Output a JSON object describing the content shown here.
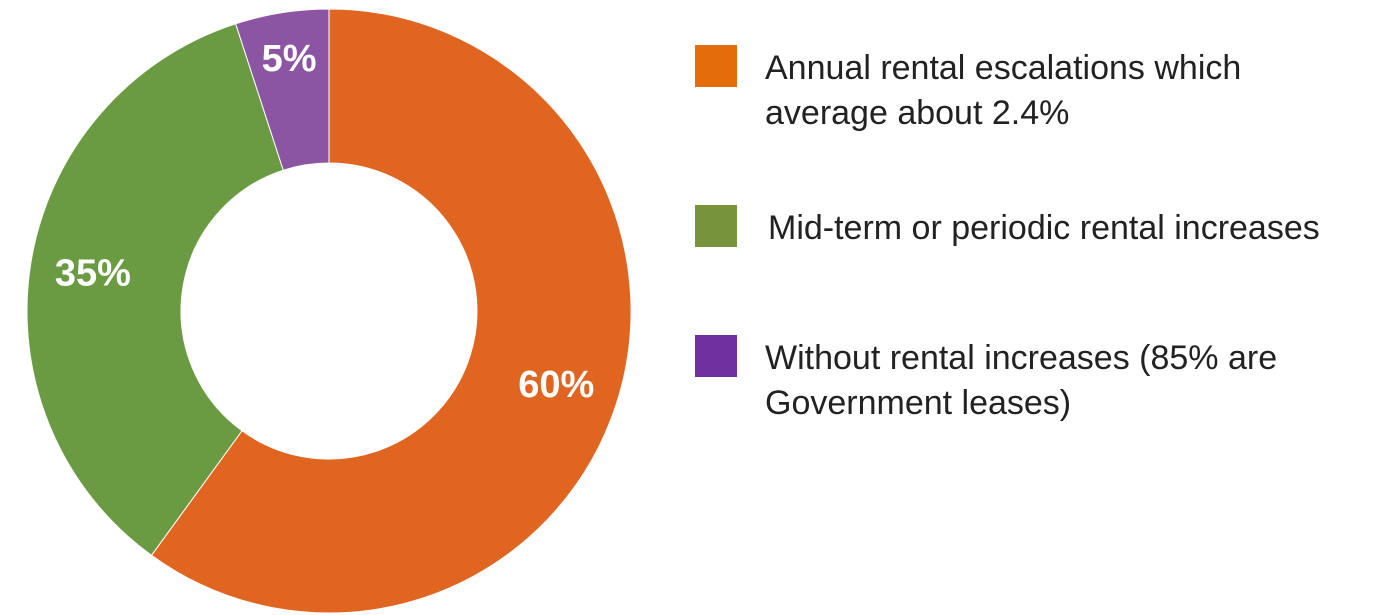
{
  "chart_data": {
    "type": "pie",
    "title": "",
    "categories": [
      "Annual rental escalations which average about 2.4%",
      "Mid-term or periodic rental increases",
      "Without rental increases (85% are Government leases)"
    ],
    "values": [
      60,
      35,
      5
    ],
    "data_labels": [
      "60%",
      "35%",
      "5%"
    ],
    "colors": [
      "#E06521",
      "#6A9B42",
      "#8B55A4"
    ],
    "legend_colors": [
      "#E46C0A",
      "#77933C",
      "#7030A0"
    ],
    "legend_lines": [
      [
        "Annual rental escalations which",
        "average about 2.4%"
      ],
      [
        "Mid-term or periodic rental increases"
      ],
      [
        "Without rental increases (85% are",
        "Government leases)"
      ]
    ],
    "legend_position": "right",
    "donut": true,
    "start_angle_deg": 0,
    "direction": "clockwise"
  }
}
